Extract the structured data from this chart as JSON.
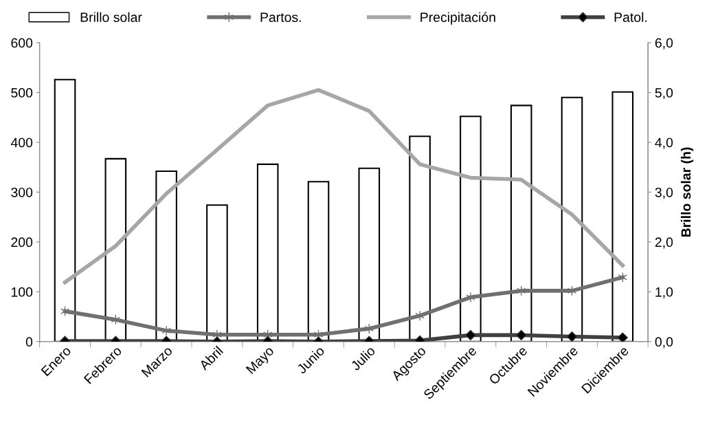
{
  "chart_data": {
    "type": "line",
    "categories": [
      "Enero",
      "Febrero",
      "Marzo",
      "Abril",
      "Mayo",
      "Junio",
      "Julio",
      "Agosto",
      "Septiembre",
      "Octubre",
      "Noviembre",
      "Diciembre"
    ],
    "series": [
      {
        "name": "Brillo solar",
        "type": "bar",
        "axis": "y2",
        "color": "#ffffff",
        "values": [
          5.26,
          3.67,
          3.42,
          2.74,
          3.56,
          3.21,
          3.48,
          4.12,
          4.52,
          4.74,
          4.9,
          5.01
        ]
      },
      {
        "name": "Partos.",
        "color": "#707070",
        "marker": "cross",
        "values": [
          61,
          44,
          22,
          14,
          14,
          14,
          26,
          52,
          89,
          102,
          102,
          129
        ]
      },
      {
        "name": "Precipitación",
        "color": "#a6a6a6",
        "marker": "none",
        "values": [
          119,
          192,
          297,
          385,
          474,
          505,
          463,
          356,
          329,
          325,
          255,
          153
        ]
      },
      {
        "name": "Patol.",
        "color": "#404040",
        "marker": "diamond",
        "values": [
          1,
          1,
          1,
          0,
          1,
          0,
          1,
          2,
          13,
          13,
          10,
          8
        ]
      }
    ],
    "ylim": [
      0,
      600
    ],
    "yticks": [
      0,
      100,
      200,
      300,
      400,
      500,
      600
    ],
    "y2lim": [
      0,
      6
    ],
    "y2ticks": [
      {
        "value": 0,
        "label": "0,0"
      },
      {
        "value": 1,
        "label": "1,0"
      },
      {
        "value": 2,
        "label": "2,0"
      },
      {
        "value": 3,
        "label": "3,0"
      },
      {
        "value": 4,
        "label": "4,0"
      },
      {
        "value": 5,
        "label": "5,0"
      },
      {
        "value": 6,
        "label": "6,0"
      }
    ],
    "y2label": "Brillo solar (h)",
    "grid": false,
    "legend": "top"
  }
}
